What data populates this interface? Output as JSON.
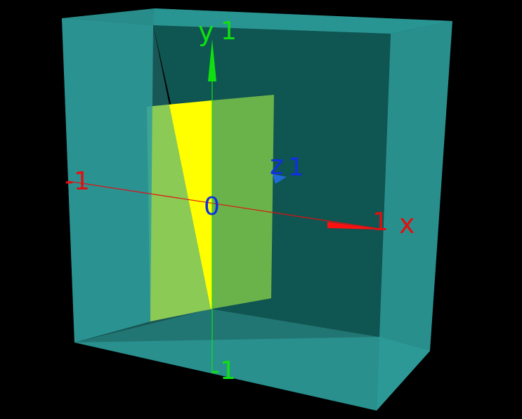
{
  "scene": {
    "background": "#000000",
    "box": {
      "color": "#2e9e9c",
      "back_color": "#0f5a57"
    },
    "plane": {
      "front_color": "#ffff00",
      "back_color": "#6ab34a"
    },
    "axes": {
      "x": {
        "label": "x",
        "min_label": "-1",
        "max_label": "1",
        "color": "#e01010"
      },
      "y": {
        "label": "y",
        "min_label": "-1",
        "max_label": "1",
        "color": "#10e010"
      },
      "z": {
        "label": "z",
        "max_label": "1",
        "color": "#1030e0"
      },
      "origin_label": "0"
    }
  }
}
